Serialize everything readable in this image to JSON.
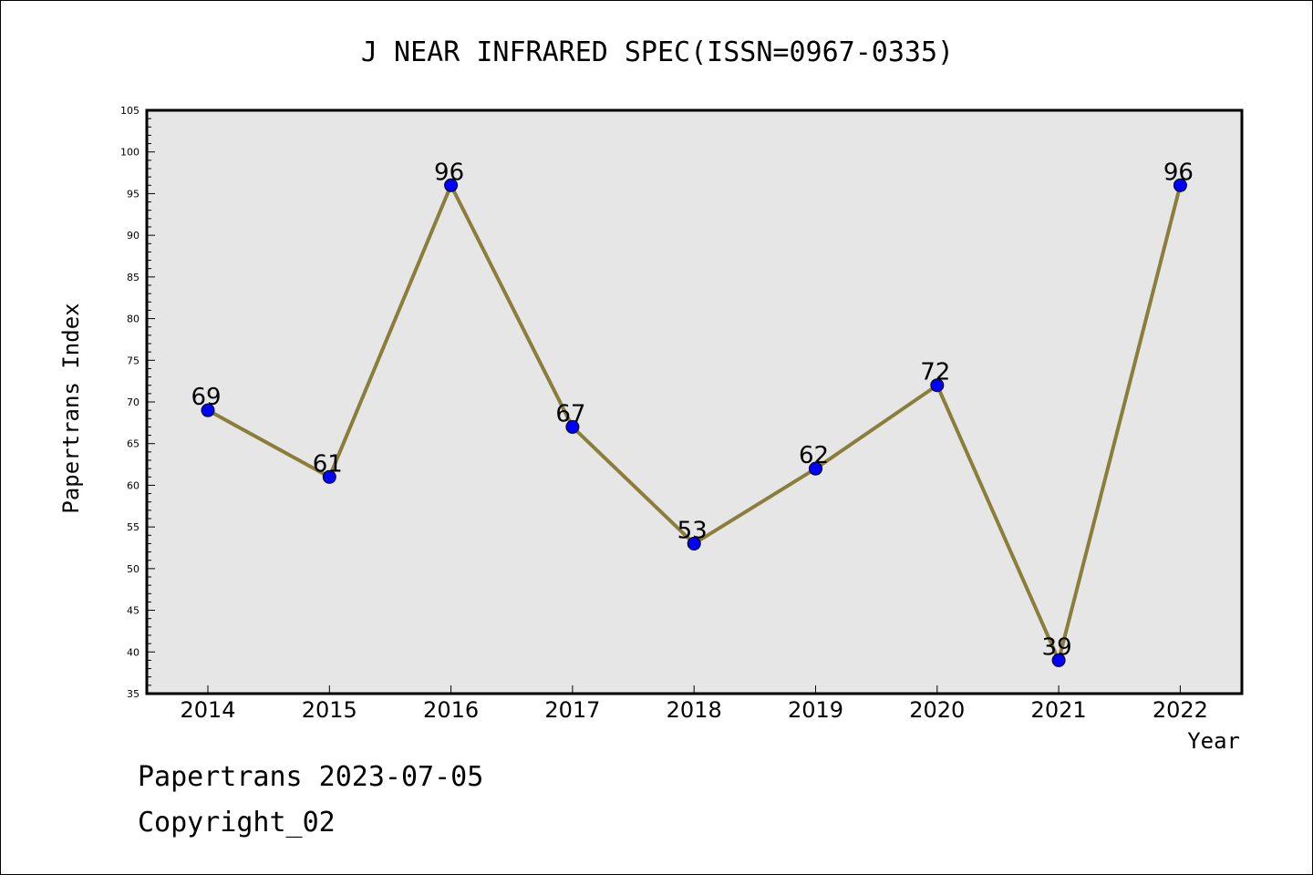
{
  "chart_data": {
    "type": "line",
    "title": "J NEAR INFRARED SPEC(ISSN=0967-0335)",
    "xlabel": "Year",
    "ylabel": "Papertrans Index",
    "categories": [
      "2014",
      "2015",
      "2016",
      "2017",
      "2018",
      "2019",
      "2020",
      "2021",
      "2022"
    ],
    "values": [
      69,
      61,
      96,
      67,
      53,
      62,
      72,
      39,
      96
    ],
    "ylim": [
      35,
      105
    ],
    "yticks": [
      "35",
      "40",
      "45",
      "50",
      "55",
      "60",
      "65",
      "70",
      "75",
      "80",
      "85",
      "90",
      "95",
      "100",
      "105"
    ],
    "data_labels": [
      "69",
      "61",
      "96",
      "67",
      "53",
      "62",
      "72",
      "39",
      "96"
    ],
    "grid": false,
    "line_color": "#8b7d3a",
    "marker_color": "#0000ff",
    "plot_background": "#e6e6e6"
  },
  "footer": {
    "line1": "Papertrans 2023-07-05",
    "line2": "Copyright_02"
  }
}
